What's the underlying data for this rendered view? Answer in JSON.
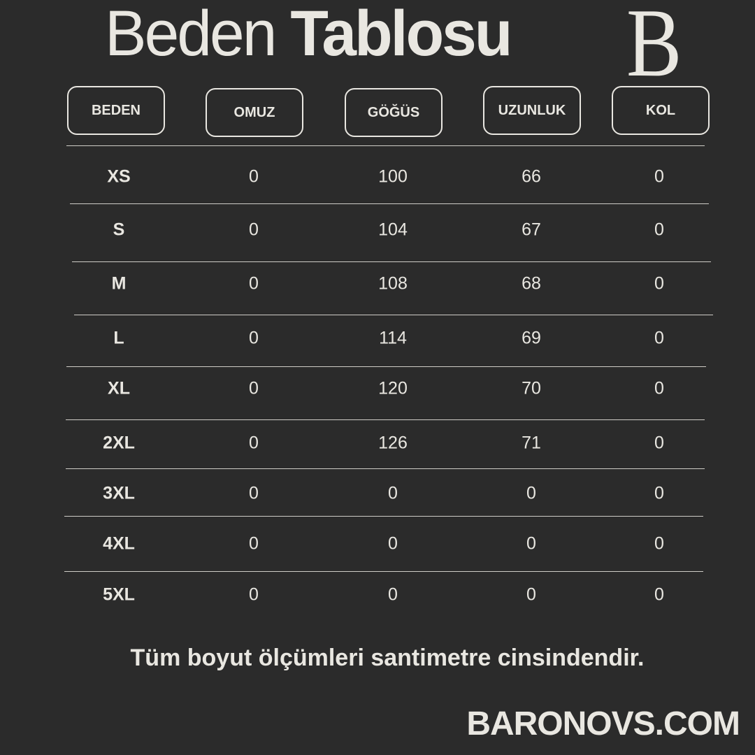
{
  "title": {
    "light": "Beden",
    "bold": "Tablosu"
  },
  "logo": "B",
  "headers": [
    "BEDEN",
    "OMUZ",
    "GÖĞÜS",
    "UZUNLUK",
    "KOL"
  ],
  "rows": [
    [
      "XS",
      "0",
      "100",
      "66",
      "0"
    ],
    [
      "S",
      "0",
      "104",
      "67",
      "0"
    ],
    [
      "M",
      "0",
      "108",
      "68",
      "0"
    ],
    [
      "L",
      "0",
      "114",
      "69",
      "0"
    ],
    [
      "XL",
      "0",
      "120",
      "70",
      "0"
    ],
    [
      "2XL",
      "0",
      "126",
      "71",
      "0"
    ],
    [
      "3XL",
      "0",
      "0",
      "0",
      "0"
    ],
    [
      "4XL",
      "0",
      "0",
      "0",
      "0"
    ],
    [
      "5XL",
      "0",
      "0",
      "0",
      "0"
    ]
  ],
  "note": "Tüm boyut ölçümleri santimetre cinsindendir.",
  "brand": "BARONOVS.COM",
  "colors": {
    "background": "#2b2b2b",
    "text": "#e9e7e1"
  }
}
